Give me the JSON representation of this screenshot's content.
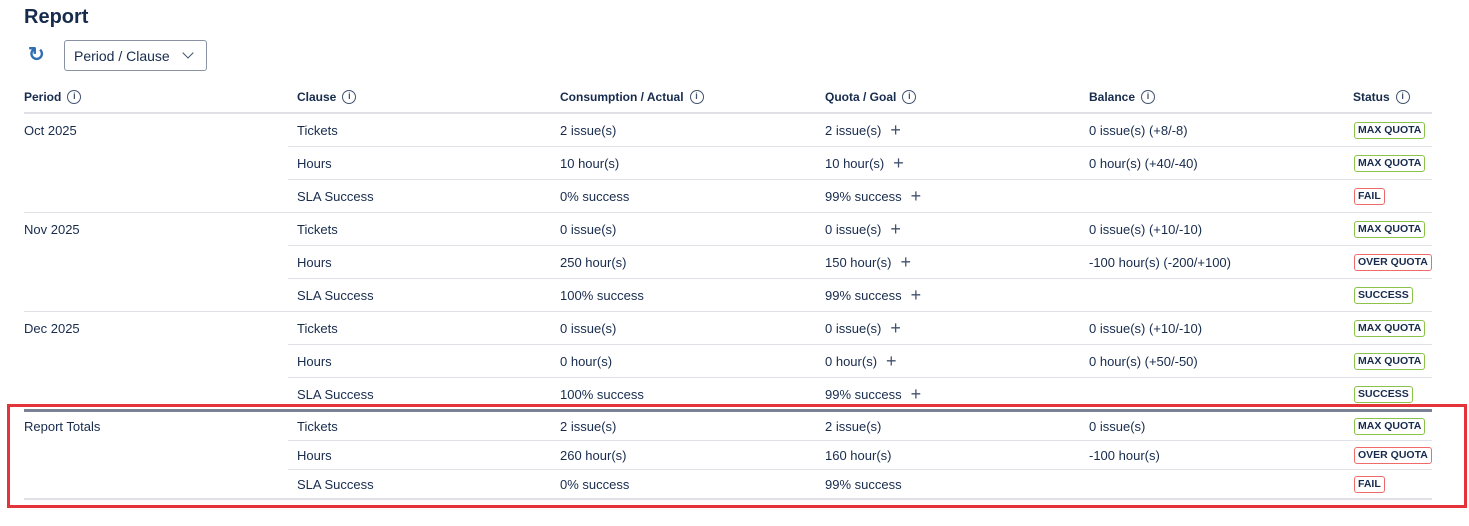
{
  "title": "Report",
  "toolbar": {
    "refresh_icon": "refresh-icon",
    "group_by": "Period / Clause"
  },
  "columns": [
    "Period",
    "Clause",
    "Consumption / Actual",
    "Quota / Goal",
    "Balance",
    "Status"
  ],
  "colors": {
    "success": "#8bc34a",
    "fail": "#f06a6a",
    "annotation": "#e5333a"
  },
  "periods": [
    {
      "period": "Oct 2025",
      "rows": [
        {
          "clause": "Tickets",
          "actual": "2 issue(s)",
          "quota": "2 issue(s)",
          "balance": "0 issue(s) (+8/-8)",
          "status": "MAX QUOTA",
          "ok": true
        },
        {
          "clause": "Hours",
          "actual": "10 hour(s)",
          "quota": "10 hour(s)",
          "balance": "0 hour(s) (+40/-40)",
          "status": "MAX QUOTA",
          "ok": true
        },
        {
          "clause": "SLA Success",
          "actual": "0% success",
          "quota": "99% success",
          "balance": "",
          "status": "FAIL",
          "ok": false
        }
      ]
    },
    {
      "period": "Nov 2025",
      "rows": [
        {
          "clause": "Tickets",
          "actual": "0 issue(s)",
          "quota": "0 issue(s)",
          "balance": "0 issue(s) (+10/-10)",
          "status": "MAX QUOTA",
          "ok": true
        },
        {
          "clause": "Hours",
          "actual": "250 hour(s)",
          "quota": "150 hour(s)",
          "balance": "-100 hour(s) (-200/+100)",
          "status": "OVER QUOTA",
          "ok": false
        },
        {
          "clause": "SLA Success",
          "actual": "100% success",
          "quota": "99% success",
          "balance": "",
          "status": "SUCCESS",
          "ok": true
        }
      ]
    },
    {
      "period": "Dec 2025",
      "rows": [
        {
          "clause": "Tickets",
          "actual": "0 issue(s)",
          "quota": "0 issue(s)",
          "balance": "0 issue(s) (+10/-10)",
          "status": "MAX QUOTA",
          "ok": true
        },
        {
          "clause": "Hours",
          "actual": "0 hour(s)",
          "quota": "0 hour(s)",
          "balance": "0 hour(s) (+50/-50)",
          "status": "MAX QUOTA",
          "ok": true
        },
        {
          "clause": "SLA Success",
          "actual": "100% success",
          "quota": "99% success",
          "balance": "",
          "status": "SUCCESS",
          "ok": true
        }
      ]
    }
  ],
  "totals": {
    "label": "Report Totals",
    "rows": [
      {
        "clause": "Tickets",
        "actual": "2 issue(s)",
        "quota": "2 issue(s)",
        "balance": "0 issue(s)",
        "status": "MAX QUOTA",
        "ok": true
      },
      {
        "clause": "Hours",
        "actual": "260 hour(s)",
        "quota": "160 hour(s)",
        "balance": "-100 hour(s)",
        "status": "OVER QUOTA",
        "ok": false
      },
      {
        "clause": "SLA Success",
        "actual": "0% success",
        "quota": "99% success",
        "balance": "",
        "status": "FAIL",
        "ok": false
      }
    ]
  }
}
